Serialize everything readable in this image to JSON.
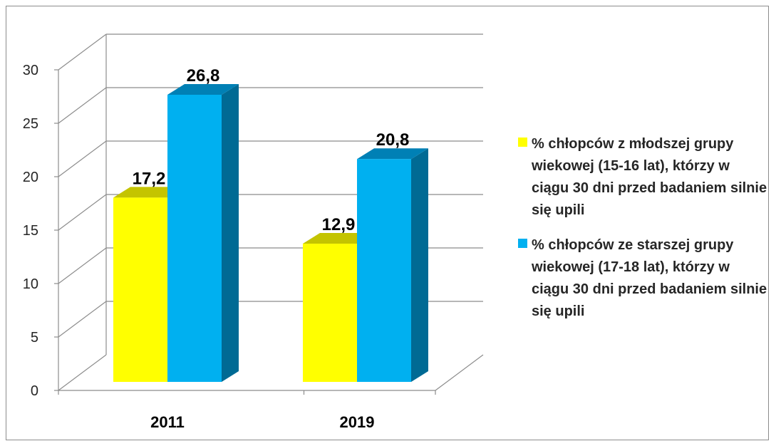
{
  "chart_data": {
    "type": "bar",
    "categories": [
      "2011",
      "2019"
    ],
    "series": [
      {
        "name": "% chłopców z młodszej grupy wiekowej (15-16 lat), którzy w ciągu 30 dni przed badaniem silnie się upili",
        "values": [
          17.2,
          12.9
        ],
        "labels": [
          "17,2",
          "12,9"
        ],
        "color": "#ffff00",
        "top_color": "#c4c400",
        "side_color": "#b3b300"
      },
      {
        "name": "% chłopców ze starszej grupy wiekowej (17-18 lat), którzy w ciągu 30 dni przed badaniem silnie się upili",
        "values": [
          26.8,
          20.8
        ],
        "labels": [
          "26,8",
          "20,8"
        ],
        "color": "#00b0f0",
        "top_color": "#0080b5",
        "side_color": "#006a94"
      }
    ],
    "ylim": [
      0,
      30
    ],
    "yticks": [
      0,
      5,
      10,
      15,
      20,
      25,
      30
    ],
    "grid": true,
    "three_d": true,
    "legend_position": "right",
    "title": "",
    "xlabel": "",
    "ylabel": ""
  }
}
